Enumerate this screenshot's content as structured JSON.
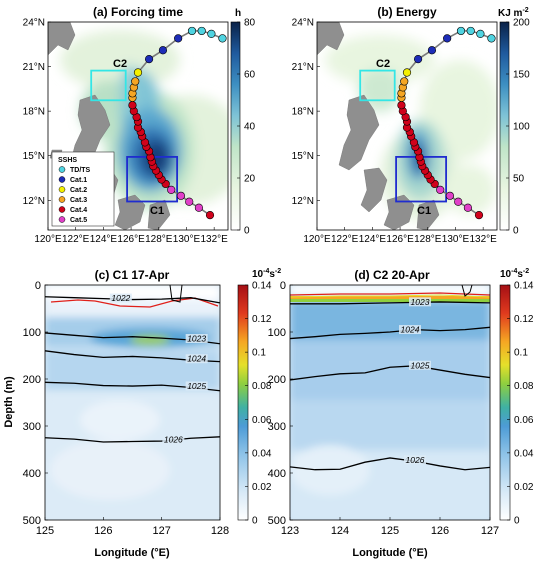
{
  "chart_data": [
    {
      "type": "heatmap",
      "panel": "(a)",
      "title": "(a) Forcing time",
      "colorbar": {
        "unit": "h",
        "range": [
          0,
          80
        ],
        "ticks": [
          "0",
          "20",
          "40",
          "60",
          "80"
        ]
      },
      "x_tick_labels": [
        "120°E",
        "122°E",
        "124°E",
        "126°E",
        "128°E",
        "130°E",
        "132°E"
      ],
      "y_tick_labels": [
        "12°N",
        "15°N",
        "18°N",
        "21°N",
        "24°N"
      ],
      "xlim": [
        120,
        133
      ],
      "ylim": [
        10,
        24
      ],
      "boxes": [
        {
          "label": "C2",
          "lon": [
            124.0,
            126.3
          ],
          "lat": [
            19.0,
            21.0
          ],
          "color": "#33e6e6"
        },
        {
          "label": "C1",
          "lon": [
            126.2,
            129.7
          ],
          "lat": [
            12.0,
            15.0
          ],
          "color": "#1f2ccf"
        }
      ],
      "legend": {
        "title": "SSHS",
        "entries": [
          {
            "label": "TD/TS",
            "color": "#4fd3e0"
          },
          {
            "label": "Cat.1",
            "color": "#1e2db8"
          },
          {
            "label": "Cat.2",
            "color": "#f4f000"
          },
          {
            "label": "Cat.3",
            "color": "#f5a623"
          },
          {
            "label": "Cat.4",
            "color": "#d0021b"
          },
          {
            "label": "Cat.5",
            "color": "#e040c8"
          }
        ]
      }
    },
    {
      "type": "heatmap",
      "panel": "(b)",
      "title": "(b) Energy",
      "colorbar": {
        "unit": "KJ m",
        "unit_sup": "-2",
        "range": [
          0,
          200
        ],
        "ticks": [
          "0",
          "50",
          "100",
          "150",
          "200"
        ]
      },
      "x_tick_labels": [
        "120°E",
        "122°E",
        "124°E",
        "126°E",
        "128°E",
        "130°E",
        "132°E"
      ],
      "y_tick_labels": [
        "12°N",
        "15°N",
        "18°N",
        "21°N",
        "24°N"
      ],
      "xlim": [
        120,
        133
      ],
      "ylim": [
        10,
        24
      ],
      "boxes": [
        {
          "label": "C2",
          "lon": [
            124.0,
            126.3
          ],
          "lat": [
            19.0,
            21.0
          ],
          "color": "#33e6e6"
        },
        {
          "label": "C1",
          "lon": [
            126.2,
            129.7
          ],
          "lat": [
            12.0,
            15.0
          ],
          "color": "#1f2ccf"
        }
      ]
    },
    {
      "type": "heatmap",
      "panel": "(c)",
      "title": "(c) C1 17-Apr",
      "colorbar": {
        "unit": "10",
        "unit_sup": "-4",
        "unit_tail": "s",
        "unit_tail_sup": "-2",
        "range": [
          0,
          0.14
        ],
        "ticks": [
          "0",
          "0.02",
          "0.04",
          "0.06",
          "0.08",
          "0.1",
          "0.12",
          "0.14"
        ]
      },
      "xlabel": "Longitude (°E)",
      "ylabel": "Depth (m)",
      "x_tick_labels": [
        "125",
        "126",
        "127",
        "128"
      ],
      "y_tick_labels": [
        "0",
        "100",
        "200",
        "300",
        "400",
        "500"
      ],
      "xlim": [
        125,
        128
      ],
      "ylim": [
        500,
        0
      ],
      "isopycnals": [
        {
          "label": "1022",
          "points": [
            [
              125,
              25
            ],
            [
              125.5,
              27
            ],
            [
              126,
              29
            ],
            [
              126.5,
              31
            ],
            [
              127,
              30
            ],
            [
              127.5,
              27
            ],
            [
              128,
              38
            ]
          ]
        },
        {
          "label": "1023",
          "points": [
            [
              125,
              102
            ],
            [
              125.5,
              107
            ],
            [
              126,
              112
            ],
            [
              126.5,
              110
            ],
            [
              127,
              113
            ],
            [
              127.5,
              117
            ],
            [
              128,
              125
            ]
          ]
        },
        {
          "label": "1024",
          "points": [
            [
              125,
              140
            ],
            [
              125.5,
              148
            ],
            [
              126,
              154
            ],
            [
              126.5,
              152
            ],
            [
              127,
              155
            ],
            [
              127.5,
              160
            ],
            [
              128,
              163
            ]
          ]
        },
        {
          "label": "1025",
          "points": [
            [
              125,
              207
            ],
            [
              125.5,
              209
            ],
            [
              126,
              214
            ],
            [
              126.5,
              215
            ],
            [
              127,
              213
            ],
            [
              127.5,
              218
            ],
            [
              128,
              225
            ]
          ]
        },
        {
          "label": "1026",
          "points": [
            [
              125,
              325
            ],
            [
              125.5,
              328
            ],
            [
              126,
              334
            ],
            [
              126.5,
              333
            ],
            [
              127,
              332
            ],
            [
              127.5,
              326
            ],
            [
              128,
              323
            ]
          ]
        }
      ]
    },
    {
      "type": "heatmap",
      "panel": "(d)",
      "title": "(d) C2 20-Apr",
      "colorbar": {
        "unit": "10",
        "unit_sup": "-4",
        "unit_tail": "s",
        "unit_tail_sup": "-2",
        "range": [
          0,
          0.14
        ],
        "ticks": [
          "0",
          "0.02",
          "0.04",
          "0.06",
          "0.08",
          "0.1",
          "0.12",
          "0.14"
        ]
      },
      "xlabel": "Longitude (°E)",
      "x_tick_labels": [
        "123",
        "124",
        "125",
        "126",
        "127"
      ],
      "y_tick_labels": [
        "0",
        "100",
        "200",
        "300",
        "400",
        "500"
      ],
      "xlim": [
        123,
        127
      ],
      "ylim": [
        500,
        0
      ],
      "isopycnals": [
        {
          "label": "1023",
          "points": [
            [
              123,
              40
            ],
            [
              124,
              40
            ],
            [
              125,
              38
            ],
            [
              126,
              36
            ],
            [
              127,
              38
            ]
          ]
        },
        {
          "label": "1024",
          "points": [
            [
              123,
              114
            ],
            [
              123.5,
              110
            ],
            [
              124,
              105
            ],
            [
              124.5,
              103
            ],
            [
              125,
              100
            ],
            [
              125.5,
              95
            ],
            [
              126,
              97
            ],
            [
              126.5,
              95
            ],
            [
              127,
              90
            ]
          ]
        },
        {
          "label": "1025",
          "points": [
            [
              123,
              202
            ],
            [
              123.5,
              195
            ],
            [
              124,
              189
            ],
            [
              124.5,
              187
            ],
            [
              125,
              175
            ],
            [
              125.5,
              172
            ],
            [
              126,
              181
            ],
            [
              126.5,
              190
            ],
            [
              127,
              197
            ]
          ]
        },
        {
          "label": "1026",
          "points": [
            [
              123,
              387
            ],
            [
              123.5,
              393
            ],
            [
              124,
              392
            ],
            [
              124.5,
              377
            ],
            [
              125,
              368
            ],
            [
              125.5,
              375
            ],
            [
              126,
              385
            ],
            [
              126.5,
              393
            ],
            [
              127,
              388
            ]
          ]
        }
      ]
    }
  ],
  "track_points": [
    {
      "lon": 131.7,
      "lat": 11.0,
      "cat": "Cat.4"
    },
    {
      "lon": 130.9,
      "lat": 11.5,
      "cat": "Cat.5"
    },
    {
      "lon": 130.2,
      "lat": 11.9,
      "cat": "Cat.5"
    },
    {
      "lon": 129.6,
      "lat": 12.3,
      "cat": "Cat.5"
    },
    {
      "lon": 128.9,
      "lat": 12.7,
      "cat": "Cat.5"
    },
    {
      "lon": 128.5,
      "lat": 13.1,
      "cat": "Cat.4"
    },
    {
      "lon": 128.2,
      "lat": 13.4,
      "cat": "Cat.4"
    },
    {
      "lon": 128.0,
      "lat": 13.7,
      "cat": "Cat.4"
    },
    {
      "lon": 127.8,
      "lat": 14.0,
      "cat": "Cat.4"
    },
    {
      "lon": 127.6,
      "lat": 14.3,
      "cat": "Cat.4"
    },
    {
      "lon": 127.5,
      "lat": 14.6,
      "cat": "Cat.4"
    },
    {
      "lon": 127.4,
      "lat": 14.9,
      "cat": "Cat.4"
    },
    {
      "lon": 127.3,
      "lat": 15.3,
      "cat": "Cat.4"
    },
    {
      "lon": 127.1,
      "lat": 15.6,
      "cat": "Cat.4"
    },
    {
      "lon": 127.0,
      "lat": 15.9,
      "cat": "Cat.4"
    },
    {
      "lon": 126.8,
      "lat": 16.3,
      "cat": "Cat.4"
    },
    {
      "lon": 126.7,
      "lat": 16.6,
      "cat": "Cat.4"
    },
    {
      "lon": 126.5,
      "lat": 16.9,
      "cat": "Cat.4"
    },
    {
      "lon": 126.5,
      "lat": 17.3,
      "cat": "Cat.4"
    },
    {
      "lon": 126.4,
      "lat": 17.6,
      "cat": "Cat.4"
    },
    {
      "lon": 126.2,
      "lat": 18.0,
      "cat": "Cat.4"
    },
    {
      "lon": 126.1,
      "lat": 18.4,
      "cat": "Cat.4"
    },
    {
      "lon": 126.1,
      "lat": 18.9,
      "cat": "Cat.3"
    },
    {
      "lon": 126.1,
      "lat": 19.2,
      "cat": "Cat.3"
    },
    {
      "lon": 126.2,
      "lat": 19.6,
      "cat": "Cat.3"
    },
    {
      "lon": 126.3,
      "lat": 20.0,
      "cat": "Cat.3"
    },
    {
      "lon": 126.5,
      "lat": 20.6,
      "cat": "Cat.2"
    },
    {
      "lon": 127.3,
      "lat": 21.5,
      "cat": "Cat.1"
    },
    {
      "lon": 128.3,
      "lat": 22.1,
      "cat": "Cat.1"
    },
    {
      "lon": 129.4,
      "lat": 22.9,
      "cat": "Cat.1"
    },
    {
      "lon": 130.4,
      "lat": 23.4,
      "cat": "TD/TS"
    },
    {
      "lon": 131.1,
      "lat": 23.4,
      "cat": "TD/TS"
    },
    {
      "lon": 131.8,
      "lat": 23.2,
      "cat": "TD/TS"
    },
    {
      "lon": 132.6,
      "lat": 22.9,
      "cat": "TD/TS"
    }
  ]
}
